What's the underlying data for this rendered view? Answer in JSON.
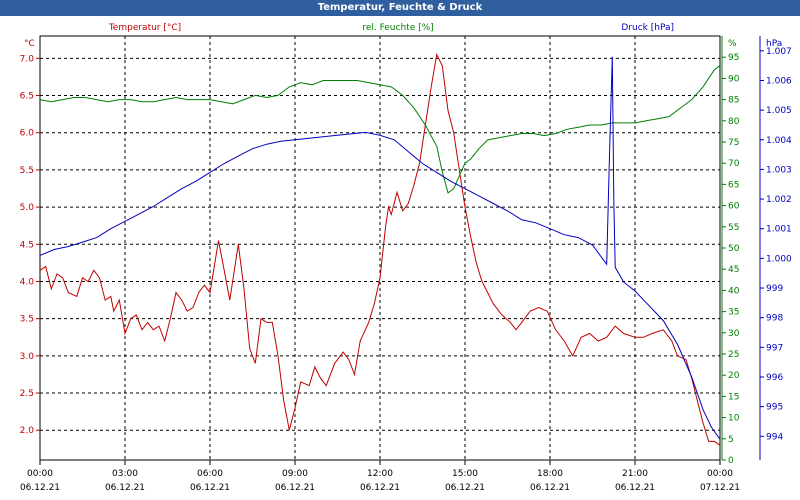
{
  "chart_data": {
    "type": "line",
    "title": "Temperatur, Feuchte & Druck",
    "legend": [
      "Temperatur [°C]",
      "rel. Feuchte [%]",
      "Druck [hPa]"
    ],
    "colors": {
      "temp": "#c00000",
      "hum": "#008000",
      "press": "#0000c0"
    },
    "x_ticks": [
      {
        "h": 0,
        "time": "00:00",
        "date": "06.12.21"
      },
      {
        "h": 3,
        "time": "03:00",
        "date": "06.12.21"
      },
      {
        "h": 6,
        "time": "06:00",
        "date": "06.12.21"
      },
      {
        "h": 9,
        "time": "09:00",
        "date": "06.12.21"
      },
      {
        "h": 12,
        "time": "12:00",
        "date": "06.12.21"
      },
      {
        "h": 15,
        "time": "15:00",
        "date": "06.12.21"
      },
      {
        "h": 18,
        "time": "18:00",
        "date": "06.12.21"
      },
      {
        "h": 21,
        "time": "21:00",
        "date": "06.12.21"
      },
      {
        "h": 24,
        "time": "00:00",
        "date": "07.12.21"
      }
    ],
    "axes": {
      "temp": {
        "unit": "°C",
        "min": 1.6,
        "max": 7.3,
        "ticks": [
          "2.0",
          "2.5",
          "3.0",
          "3.5",
          "4.0",
          "4.5",
          "5.0",
          "5.5",
          "6.0",
          "6.5",
          "7.0"
        ]
      },
      "hum": {
        "unit": "%",
        "min": 0,
        "max": 100,
        "ticks": [
          "0",
          "5",
          "10",
          "15",
          "20",
          "25",
          "30",
          "35",
          "40",
          "45",
          "50",
          "55",
          "60",
          "65",
          "70",
          "75",
          "80",
          "85",
          "90",
          "95"
        ]
      },
      "press": {
        "unit": "hPa",
        "min": 993.2,
        "max": 1007.5,
        "ticks": [
          "994",
          "995",
          "996",
          "997",
          "998",
          "999",
          "1.000",
          "1.001",
          "1.002",
          "1.003",
          "1.004",
          "1.005",
          "1.006",
          "1.007"
        ]
      }
    },
    "series": [
      {
        "name": "Temperatur [°C]",
        "key": "temp",
        "data": [
          [
            0,
            4.15
          ],
          [
            0.2,
            4.2
          ],
          [
            0.4,
            3.9
          ],
          [
            0.6,
            4.1
          ],
          [
            0.8,
            4.05
          ],
          [
            1,
            3.85
          ],
          [
            1.3,
            3.8
          ],
          [
            1.5,
            4.05
          ],
          [
            1.7,
            4.0
          ],
          [
            1.9,
            4.15
          ],
          [
            2.1,
            4.05
          ],
          [
            2.3,
            3.75
          ],
          [
            2.5,
            3.8
          ],
          [
            2.6,
            3.6
          ],
          [
            2.8,
            3.75
          ],
          [
            3.0,
            3.3
          ],
          [
            3.2,
            3.5
          ],
          [
            3.4,
            3.55
          ],
          [
            3.6,
            3.35
          ],
          [
            3.8,
            3.45
          ],
          [
            4.0,
            3.35
          ],
          [
            4.2,
            3.4
          ],
          [
            4.4,
            3.2
          ],
          [
            4.6,
            3.5
          ],
          [
            4.8,
            3.85
          ],
          [
            5.0,
            3.75
          ],
          [
            5.2,
            3.6
          ],
          [
            5.4,
            3.65
          ],
          [
            5.6,
            3.85
          ],
          [
            5.8,
            3.95
          ],
          [
            6.0,
            3.85
          ],
          [
            6.3,
            4.55
          ],
          [
            6.5,
            4.15
          ],
          [
            6.7,
            3.75
          ],
          [
            7.0,
            4.5
          ],
          [
            7.2,
            3.9
          ],
          [
            7.4,
            3.1
          ],
          [
            7.6,
            2.9
          ],
          [
            7.8,
            3.5
          ],
          [
            8.0,
            3.45
          ],
          [
            8.2,
            3.45
          ],
          [
            8.4,
            3.0
          ],
          [
            8.6,
            2.4
          ],
          [
            8.8,
            2.0
          ],
          [
            9.0,
            2.3
          ],
          [
            9.2,
            2.65
          ],
          [
            9.5,
            2.6
          ],
          [
            9.7,
            2.85
          ],
          [
            9.9,
            2.7
          ],
          [
            10.1,
            2.6
          ],
          [
            10.4,
            2.9
          ],
          [
            10.7,
            3.05
          ],
          [
            10.9,
            2.95
          ],
          [
            11.1,
            2.75
          ],
          [
            11.3,
            3.2
          ],
          [
            11.6,
            3.45
          ],
          [
            11.8,
            3.7
          ],
          [
            12.0,
            4.05
          ],
          [
            12.2,
            4.75
          ],
          [
            12.3,
            5.0
          ],
          [
            12.4,
            4.9
          ],
          [
            12.6,
            5.2
          ],
          [
            12.8,
            4.95
          ],
          [
            13.0,
            5.05
          ],
          [
            13.2,
            5.3
          ],
          [
            13.4,
            5.6
          ],
          [
            13.6,
            6.1
          ],
          [
            13.8,
            6.6
          ],
          [
            14.0,
            7.05
          ],
          [
            14.2,
            6.9
          ],
          [
            14.4,
            6.3
          ],
          [
            14.6,
            6.0
          ],
          [
            14.8,
            5.5
          ],
          [
            15.0,
            5.0
          ],
          [
            15.2,
            4.6
          ],
          [
            15.4,
            4.25
          ],
          [
            15.6,
            4.0
          ],
          [
            15.8,
            3.85
          ],
          [
            16.0,
            3.7
          ],
          [
            16.3,
            3.55
          ],
          [
            16.6,
            3.45
          ],
          [
            16.8,
            3.35
          ],
          [
            17.0,
            3.45
          ],
          [
            17.3,
            3.6
          ],
          [
            17.6,
            3.65
          ],
          [
            17.9,
            3.6
          ],
          [
            18.2,
            3.35
          ],
          [
            18.5,
            3.2
          ],
          [
            18.8,
            3.0
          ],
          [
            19.1,
            3.25
          ],
          [
            19.4,
            3.3
          ],
          [
            19.7,
            3.2
          ],
          [
            20.0,
            3.25
          ],
          [
            20.3,
            3.4
          ],
          [
            20.6,
            3.3
          ],
          [
            21.0,
            3.25
          ],
          [
            21.3,
            3.25
          ],
          [
            21.6,
            3.3
          ],
          [
            22.0,
            3.35
          ],
          [
            22.3,
            3.2
          ],
          [
            22.5,
            3.0
          ],
          [
            22.8,
            2.95
          ],
          [
            23.0,
            2.7
          ],
          [
            23.2,
            2.4
          ],
          [
            23.4,
            2.1
          ],
          [
            23.6,
            1.85
          ],
          [
            23.8,
            1.85
          ],
          [
            24.0,
            1.8
          ]
        ]
      },
      {
        "name": "rel. Feuchte [%]",
        "key": "hum",
        "data": [
          [
            0,
            85
          ],
          [
            0.4,
            84.5
          ],
          [
            0.8,
            85
          ],
          [
            1.2,
            85.5
          ],
          [
            1.6,
            85.5
          ],
          [
            2.0,
            85
          ],
          [
            2.4,
            84.5
          ],
          [
            2.8,
            85
          ],
          [
            3.2,
            85
          ],
          [
            3.6,
            84.5
          ],
          [
            4.0,
            84.5
          ],
          [
            4.4,
            85
          ],
          [
            4.8,
            85.5
          ],
          [
            5.2,
            85
          ],
          [
            5.6,
            85
          ],
          [
            6.0,
            85
          ],
          [
            6.4,
            84.5
          ],
          [
            6.8,
            84
          ],
          [
            7.2,
            85
          ],
          [
            7.6,
            86
          ],
          [
            8.0,
            85.5
          ],
          [
            8.4,
            86
          ],
          [
            8.8,
            88
          ],
          [
            9.2,
            89
          ],
          [
            9.6,
            88.5
          ],
          [
            10.0,
            89.5
          ],
          [
            10.4,
            89.5
          ],
          [
            10.8,
            89.5
          ],
          [
            11.2,
            89.5
          ],
          [
            11.6,
            89
          ],
          [
            12.0,
            88.5
          ],
          [
            12.4,
            88
          ],
          [
            12.8,
            86
          ],
          [
            13.2,
            83
          ],
          [
            13.6,
            79
          ],
          [
            14.0,
            74
          ],
          [
            14.2,
            68
          ],
          [
            14.4,
            63
          ],
          [
            14.6,
            64
          ],
          [
            14.8,
            67
          ],
          [
            15.0,
            70
          ],
          [
            15.2,
            71
          ],
          [
            15.5,
            73.5
          ],
          [
            15.8,
            75.5
          ],
          [
            16.2,
            76
          ],
          [
            16.6,
            76.5
          ],
          [
            17.0,
            77
          ],
          [
            17.4,
            77
          ],
          [
            17.8,
            76.5
          ],
          [
            18.2,
            77
          ],
          [
            18.6,
            78
          ],
          [
            19.0,
            78.5
          ],
          [
            19.4,
            79
          ],
          [
            19.8,
            79
          ],
          [
            20.2,
            79.5
          ],
          [
            20.6,
            79.5
          ],
          [
            21.0,
            79.5
          ],
          [
            21.4,
            80
          ],
          [
            21.8,
            80.5
          ],
          [
            22.2,
            81
          ],
          [
            22.6,
            83
          ],
          [
            23.0,
            85
          ],
          [
            23.4,
            88
          ],
          [
            23.8,
            92
          ],
          [
            24.0,
            93
          ]
        ]
      },
      {
        "name": "Druck [hPa]",
        "key": "press",
        "data": [
          [
            0,
            1000.1
          ],
          [
            0.5,
            1000.3
          ],
          [
            1.0,
            1000.4
          ],
          [
            1.5,
            1000.55
          ],
          [
            2.0,
            1000.7
          ],
          [
            2.5,
            1001.0
          ],
          [
            3.0,
            1001.25
          ],
          [
            3.5,
            1001.5
          ],
          [
            4.0,
            1001.75
          ],
          [
            4.5,
            1002.05
          ],
          [
            5.0,
            1002.35
          ],
          [
            5.5,
            1002.6
          ],
          [
            6.0,
            1002.9
          ],
          [
            6.5,
            1003.2
          ],
          [
            7.0,
            1003.45
          ],
          [
            7.5,
            1003.7
          ],
          [
            8.0,
            1003.85
          ],
          [
            8.5,
            1003.95
          ],
          [
            9.0,
            1004.0
          ],
          [
            9.5,
            1004.05
          ],
          [
            10.0,
            1004.1
          ],
          [
            10.5,
            1004.15
          ],
          [
            11.0,
            1004.2
          ],
          [
            11.5,
            1004.25
          ],
          [
            12.0,
            1004.15
          ],
          [
            12.5,
            1004.0
          ],
          [
            13.0,
            1003.6
          ],
          [
            13.5,
            1003.2
          ],
          [
            14.0,
            1002.9
          ],
          [
            14.5,
            1002.6
          ],
          [
            15.0,
            1002.35
          ],
          [
            15.5,
            1002.1
          ],
          [
            16.0,
            1001.85
          ],
          [
            16.5,
            1001.6
          ],
          [
            17.0,
            1001.3
          ],
          [
            17.5,
            1001.2
          ],
          [
            18.0,
            1001.0
          ],
          [
            18.5,
            1000.8
          ],
          [
            19.0,
            1000.7
          ],
          [
            19.5,
            1000.45
          ],
          [
            20.0,
            999.8
          ],
          [
            20.1,
            1003.5
          ],
          [
            20.2,
            1006.8
          ],
          [
            20.25,
            1002.0
          ],
          [
            20.3,
            999.7
          ],
          [
            20.6,
            999.2
          ],
          [
            21.0,
            998.9
          ],
          [
            21.5,
            998.4
          ],
          [
            22.0,
            997.9
          ],
          [
            22.5,
            997.1
          ],
          [
            23.0,
            996.0
          ],
          [
            23.4,
            994.9
          ],
          [
            23.7,
            994.3
          ],
          [
            24.0,
            993.9
          ]
        ]
      }
    ]
  }
}
